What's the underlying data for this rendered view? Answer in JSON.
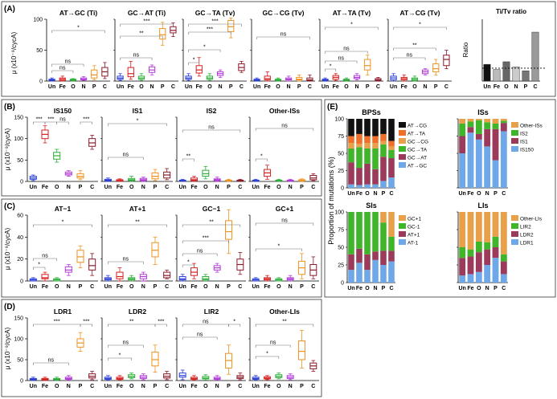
{
  "figure": {
    "conditions": [
      "Un",
      "Fe",
      "O",
      "N",
      "P",
      "C"
    ],
    "colors": {
      "Un": "#2b3fd6",
      "Fe": "#d62020",
      "O": "#2eae3a",
      "N": "#b13ad6",
      "P": "#ef9220",
      "C": "#8b1a2a"
    },
    "y_axis_label": "μ (x10⁻⁹/cycA)"
  },
  "panels": [
    {
      "label": "(A)",
      "charts": [
        "AT→GC (Ti)",
        "GC→AT (Ti)",
        "GC→TA (Tv)",
        "GC→CG (Tv)",
        "AT→TA (Tv)",
        "AT→CG (Tv)"
      ]
    },
    {
      "label": "(B)",
      "charts": [
        "IS150",
        "IS1",
        "IS2",
        "Other-ISs"
      ]
    },
    {
      "label": "(C)",
      "charts": [
        "AT−1",
        "AT+1",
        "GC−1",
        "GC+1"
      ]
    },
    {
      "label": "(D)",
      "charts": [
        "LDR1",
        "LDR2",
        "LIR2",
        "Other-LIs"
      ]
    },
    {
      "label": "(E)",
      "charts": [
        "BPSs",
        "ISs",
        "SIs",
        "LIs"
      ]
    }
  ],
  "titv": {
    "title": "Ti/Tv ratio",
    "ylabel": "Ratio"
  },
  "e_axis": {
    "ylabel": "Proportion of mutations (%)",
    "ticks": [
      "0",
      "25",
      "50",
      "75",
      "100"
    ]
  },
  "sig": {
    "ns": "ns",
    "s1": "*",
    "s2": "**",
    "s3": "***"
  },
  "chart_data": [
    {
      "id": "A1",
      "type": "box",
      "title": "AT→GC (Ti)",
      "ylim": [
        0,
        100
      ],
      "yticks": [
        0,
        50,
        100
      ],
      "medians": [
        2,
        3,
        2,
        3,
        10,
        15
      ],
      "q1": [
        1,
        1,
        1,
        2,
        5,
        8
      ],
      "q3": [
        3,
        5,
        3,
        5,
        18,
        22
      ],
      "min": [
        0,
        0,
        0,
        1,
        2,
        4
      ],
      "max": [
        5,
        8,
        4,
        7,
        25,
        30
      ]
    },
    {
      "id": "A2",
      "type": "box",
      "title": "GC→AT (Ti)",
      "ylim": [
        0,
        100
      ],
      "yticks": [
        0,
        50,
        100
      ],
      "medians": [
        5,
        12,
        5,
        18,
        75,
        82
      ],
      "q1": [
        3,
        7,
        3,
        14,
        68,
        78
      ],
      "q3": [
        8,
        22,
        8,
        23,
        85,
        88
      ],
      "min": [
        1,
        3,
        1,
        10,
        58,
        72
      ],
      "max": [
        12,
        32,
        12,
        26,
        95,
        94
      ]
    },
    {
      "id": "A3",
      "type": "box",
      "title": "GC→TA (Tv)",
      "ylim": [
        0,
        100
      ],
      "yticks": [
        0,
        50,
        100
      ],
      "medians": [
        5,
        18,
        5,
        12,
        88,
        22
      ],
      "q1": [
        3,
        13,
        3,
        9,
        80,
        17
      ],
      "q3": [
        8,
        25,
        8,
        15,
        98,
        28
      ],
      "min": [
        1,
        8,
        1,
        6,
        70,
        14
      ],
      "max": [
        12,
        38,
        12,
        18,
        102,
        32
      ]
    },
    {
      "id": "A4",
      "type": "box",
      "title": "GC→CG (Tv)",
      "ylim": [
        0,
        100
      ],
      "yticks": [
        0,
        50,
        100
      ],
      "medians": [
        2,
        4,
        2,
        3,
        3,
        2
      ],
      "q1": [
        1,
        2,
        1,
        2,
        2,
        1
      ],
      "q3": [
        3,
        8,
        3,
        5,
        6,
        5
      ],
      "min": [
        0,
        0,
        0,
        0,
        0,
        0
      ],
      "max": [
        5,
        15,
        5,
        8,
        10,
        10
      ]
    },
    {
      "id": "A5",
      "type": "box",
      "title": "AT→TA (Tv)",
      "ylim": [
        0,
        100
      ],
      "yticks": [
        0,
        50,
        100
      ],
      "medians": [
        2,
        6,
        2,
        6,
        25,
        2
      ],
      "q1": [
        1,
        3,
        1,
        4,
        18,
        1
      ],
      "q3": [
        3,
        9,
        3,
        9,
        35,
        4
      ],
      "min": [
        0,
        1,
        0,
        2,
        10,
        0
      ],
      "max": [
        5,
        12,
        5,
        12,
        42,
        6
      ]
    },
    {
      "id": "A6",
      "type": "box",
      "title": "AT→CG (Tv)",
      "ylim": [
        0,
        100
      ],
      "yticks": [
        0,
        50,
        100
      ],
      "medians": [
        5,
        4,
        3,
        15,
        20,
        35
      ],
      "q1": [
        2,
        2,
        1,
        12,
        15,
        25
      ],
      "q3": [
        8,
        6,
        5,
        18,
        28,
        42
      ],
      "min": [
        0,
        0,
        0,
        10,
        10,
        20
      ],
      "max": [
        12,
        10,
        8,
        20,
        35,
        50
      ]
    },
    {
      "id": "A7",
      "type": "bar",
      "title": "Ti/Tv ratio",
      "ylim": [
        0,
        2.4
      ],
      "values": [
        0.65,
        0.45,
        0.75,
        0.55,
        0.4,
        1.9
      ],
      "reference_line": 0.5
    },
    {
      "id": "B1",
      "type": "box",
      "title": "IS150",
      "ylim": [
        0,
        150
      ],
      "yticks": [
        0,
        50,
        100,
        150
      ],
      "medians": [
        8,
        110,
        60,
        18,
        12,
        90
      ],
      "q1": [
        5,
        100,
        52,
        15,
        8,
        82
      ],
      "q3": [
        12,
        120,
        68,
        22,
        18,
        100
      ],
      "min": [
        2,
        90,
        45,
        12,
        4,
        75
      ],
      "max": [
        15,
        130,
        75,
        25,
        25,
        108
      ]
    },
    {
      "id": "B2",
      "type": "box",
      "title": "IS1",
      "ylim": [
        0,
        150
      ],
      "yticks": [
        0,
        50,
        100,
        150
      ],
      "medians": [
        3,
        2,
        4,
        4,
        12,
        15
      ],
      "q1": [
        1,
        1,
        2,
        2,
        6,
        8
      ],
      "q3": [
        5,
        4,
        7,
        7,
        20,
        22
      ],
      "min": [
        0,
        0,
        0,
        0,
        2,
        4
      ],
      "max": [
        8,
        6,
        12,
        10,
        28,
        30
      ]
    },
    {
      "id": "B3",
      "type": "box",
      "title": "IS2",
      "ylim": [
        0,
        150
      ],
      "yticks": [
        0,
        50,
        100,
        150
      ],
      "medians": [
        2,
        4,
        18,
        4,
        2,
        2
      ],
      "q1": [
        1,
        2,
        12,
        2,
        1,
        1
      ],
      "q3": [
        3,
        8,
        26,
        6,
        3,
        3
      ],
      "min": [
        0,
        0,
        6,
        0,
        0,
        0
      ],
      "max": [
        5,
        12,
        35,
        10,
        5,
        5
      ]
    },
    {
      "id": "B4",
      "type": "box",
      "title": "Other-ISs",
      "ylim": [
        0,
        150
      ],
      "yticks": [
        0,
        50,
        100,
        150
      ],
      "medians": [
        2,
        20,
        2,
        2,
        2,
        8
      ],
      "q1": [
        1,
        12,
        1,
        1,
        1,
        4
      ],
      "q3": [
        3,
        28,
        3,
        3,
        4,
        14
      ],
      "min": [
        0,
        5,
        0,
        0,
        0,
        2
      ],
      "max": [
        5,
        38,
        5,
        5,
        6,
        18
      ]
    },
    {
      "id": "C1",
      "type": "box",
      "title": "AT−1",
      "ylim": [
        0,
        60
      ],
      "yticks": [
        0,
        20,
        40,
        60
      ],
      "medians": [
        1,
        3,
        1,
        10,
        22,
        14
      ],
      "q1": [
        0,
        2,
        0,
        8,
        17,
        10
      ],
      "q3": [
        2,
        6,
        2,
        13,
        28,
        20
      ],
      "min": [
        0,
        0,
        0,
        5,
        12,
        5
      ],
      "max": [
        3,
        8,
        3,
        15,
        32,
        25
      ]
    },
    {
      "id": "C2",
      "type": "box",
      "title": "AT+1",
      "ylim": [
        0,
        60
      ],
      "yticks": [
        0,
        20,
        40,
        60
      ],
      "medians": [
        2,
        4,
        2,
        4,
        28,
        5
      ],
      "q1": [
        1,
        2,
        1,
        2,
        22,
        3
      ],
      "q3": [
        3,
        8,
        3,
        6,
        35,
        8
      ],
      "min": [
        0,
        0,
        0,
        0,
        15,
        2
      ],
      "max": [
        5,
        12,
        5,
        8,
        40,
        10
      ]
    },
    {
      "id": "C3",
      "type": "box",
      "title": "GC−1",
      "ylim": [
        0,
        60
      ],
      "yticks": [
        0,
        20,
        40,
        60
      ],
      "medians": [
        2,
        8,
        2,
        12,
        45,
        15
      ],
      "q1": [
        1,
        5,
        1,
        10,
        38,
        10
      ],
      "q3": [
        4,
        12,
        4,
        14,
        55,
        20
      ],
      "min": [
        0,
        2,
        0,
        8,
        25,
        6
      ],
      "max": [
        6,
        16,
        6,
        16,
        65,
        26
      ]
    },
    {
      "id": "C4",
      "type": "box",
      "title": "GC+1",
      "ylim": [
        0,
        60
      ],
      "yticks": [
        0,
        20,
        40,
        60
      ],
      "medians": [
        1,
        2,
        1,
        2,
        12,
        10
      ],
      "q1": [
        0,
        1,
        0,
        1,
        6,
        5
      ],
      "q3": [
        2,
        3,
        2,
        3,
        18,
        15
      ],
      "min": [
        0,
        0,
        0,
        0,
        2,
        2
      ],
      "max": [
        3,
        5,
        3,
        5,
        25,
        22
      ]
    },
    {
      "id": "D1",
      "type": "box",
      "title": "LDR1",
      "ylim": [
        0,
        150
      ],
      "yticks": [
        0,
        50,
        100,
        150
      ],
      "medians": [
        3,
        3,
        3,
        5,
        90,
        10
      ],
      "q1": [
        2,
        2,
        2,
        3,
        80,
        6
      ],
      "q3": [
        5,
        5,
        5,
        8,
        100,
        16
      ],
      "min": [
        0,
        0,
        0,
        1,
        70,
        2
      ],
      "max": [
        8,
        8,
        8,
        12,
        115,
        22
      ]
    },
    {
      "id": "D2",
      "type": "box",
      "title": "LDR2",
      "ylim": [
        0,
        150
      ],
      "yticks": [
        0,
        50,
        100,
        150
      ],
      "medians": [
        5,
        5,
        10,
        8,
        50,
        10
      ],
      "q1": [
        3,
        3,
        7,
        5,
        35,
        6
      ],
      "q3": [
        8,
        8,
        14,
        12,
        68,
        16
      ],
      "min": [
        1,
        1,
        4,
        2,
        20,
        2
      ],
      "max": [
        12,
        12,
        18,
        16,
        85,
        22
      ]
    },
    {
      "id": "D3",
      "type": "box",
      "title": "LIR2",
      "ylim": [
        0,
        150
      ],
      "yticks": [
        0,
        50,
        100,
        150
      ],
      "medians": [
        12,
        5,
        6,
        5,
        48,
        8
      ],
      "q1": [
        8,
        3,
        4,
        3,
        30,
        5
      ],
      "q3": [
        18,
        8,
        10,
        8,
        65,
        12
      ],
      "min": [
        2,
        1,
        1,
        1,
        15,
        2
      ],
      "max": [
        25,
        12,
        14,
        12,
        85,
        18
      ]
    },
    {
      "id": "D4",
      "type": "box",
      "title": "Other-LIs",
      "ylim": [
        0,
        150
      ],
      "yticks": [
        0,
        50,
        100,
        150
      ],
      "medians": [
        5,
        6,
        10,
        8,
        70,
        35
      ],
      "q1": [
        3,
        4,
        7,
        5,
        50,
        28
      ],
      "q3": [
        8,
        9,
        14,
        12,
        95,
        42
      ],
      "min": [
        1,
        2,
        4,
        2,
        30,
        22
      ],
      "max": [
        12,
        12,
        18,
        16,
        120,
        48
      ]
    },
    {
      "id": "E1",
      "type": "stacked_bar",
      "title": "BPSs",
      "categories": [
        "Un",
        "Fe",
        "O",
        "N",
        "P",
        "C"
      ],
      "series": [
        {
          "name": "AT→GC",
          "color": "#6fa8e8",
          "values": [
            5,
            4,
            5,
            5,
            10,
            15
          ]
        },
        {
          "name": "GC→AT",
          "color": "#9c3a5c",
          "values": [
            32,
            25,
            30,
            22,
            35,
            28
          ]
        },
        {
          "name": "GC→TA",
          "color": "#3fb52a",
          "values": [
            20,
            30,
            22,
            30,
            18,
            12
          ]
        },
        {
          "name": "GC→CG",
          "color": "#e8a04a",
          "values": [
            8,
            5,
            8,
            8,
            5,
            5
          ]
        },
        {
          "name": "AT→TA",
          "color": "#f0702a",
          "values": [
            10,
            14,
            10,
            10,
            10,
            8
          ]
        },
        {
          "name": "AT→CG",
          "color": "#111111",
          "values": [
            25,
            22,
            25,
            25,
            22,
            32
          ]
        }
      ]
    },
    {
      "id": "E2",
      "type": "stacked_bar",
      "title": "ISs",
      "categories": [
        "Un",
        "Fe",
        "O",
        "N",
        "P",
        "C"
      ],
      "series": [
        {
          "name": "IS150",
          "color": "#6fa8e8",
          "values": [
            50,
            80,
            70,
            60,
            40,
            82
          ]
        },
        {
          "name": "IS1",
          "color": "#9c3a5c",
          "values": [
            25,
            8,
            8,
            25,
            45,
            12
          ]
        },
        {
          "name": "IS2",
          "color": "#3fb52a",
          "values": [
            18,
            8,
            20,
            10,
            8,
            3
          ]
        },
        {
          "name": "Other-ISs",
          "color": "#e8a04a",
          "values": [
            7,
            4,
            2,
            5,
            7,
            3
          ]
        }
      ]
    },
    {
      "id": "E3",
      "type": "stacked_bar",
      "title": "SIs",
      "categories": [
        "Un",
        "Fe",
        "O",
        "N",
        "P",
        "C"
      ],
      "series": [
        {
          "name": "AT-1",
          "color": "#6fa8e8",
          "values": [
            18,
            28,
            18,
            32,
            25,
            30
          ]
        },
        {
          "name": "AT+1",
          "color": "#9c3a5c",
          "values": [
            22,
            20,
            22,
            12,
            20,
            15
          ]
        },
        {
          "name": "GC-1",
          "color": "#3fb52a",
          "values": [
            60,
            52,
            60,
            56,
            40,
            20
          ]
        },
        {
          "name": "GC+1",
          "color": "#e8a04a",
          "values": [
            0,
            0,
            0,
            0,
            15,
            35
          ]
        }
      ]
    },
    {
      "id": "E4",
      "type": "stacked_bar",
      "title": "LIs",
      "categories": [
        "Un",
        "Fe",
        "O",
        "N",
        "P",
        "C"
      ],
      "series": [
        {
          "name": "LDR1",
          "color": "#6fa8e8",
          "values": [
            10,
            12,
            15,
            25,
            35,
            12
          ]
        },
        {
          "name": "LDR2",
          "color": "#9c3a5c",
          "values": [
            25,
            25,
            28,
            22,
            15,
            18
          ]
        },
        {
          "name": "LIR2",
          "color": "#3fb52a",
          "values": [
            15,
            10,
            15,
            10,
            15,
            10
          ]
        },
        {
          "name": "Other-LIs",
          "color": "#e8a04a",
          "values": [
            50,
            53,
            42,
            43,
            35,
            60
          ]
        }
      ]
    }
  ]
}
